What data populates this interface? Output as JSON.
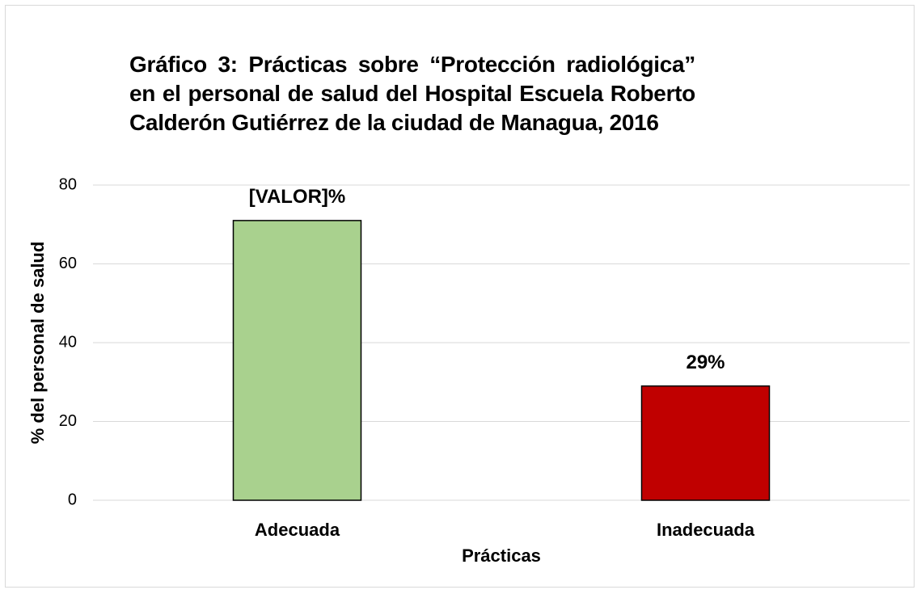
{
  "chart_data": {
    "type": "bar",
    "title": "Gráfico 3: Prácticas sobre “Protección radiológica”  en el personal de salud del Hospital Escuela Roberto Calderón Gutiérrez de la ciudad de Managua, 2016",
    "x_label": "Prácticas",
    "y_label": "% del personal de salud",
    "categories": [
      "Adecuada",
      "Inadecuada"
    ],
    "values": [
      71,
      29
    ],
    "value_labels": [
      "[VALOR]%",
      "29%"
    ],
    "colors": [
      "#a9d18e",
      "#c00000"
    ],
    "ylim": [
      0,
      80
    ],
    "yticks": [
      0,
      20,
      40,
      60,
      80
    ],
    "grid": true
  }
}
